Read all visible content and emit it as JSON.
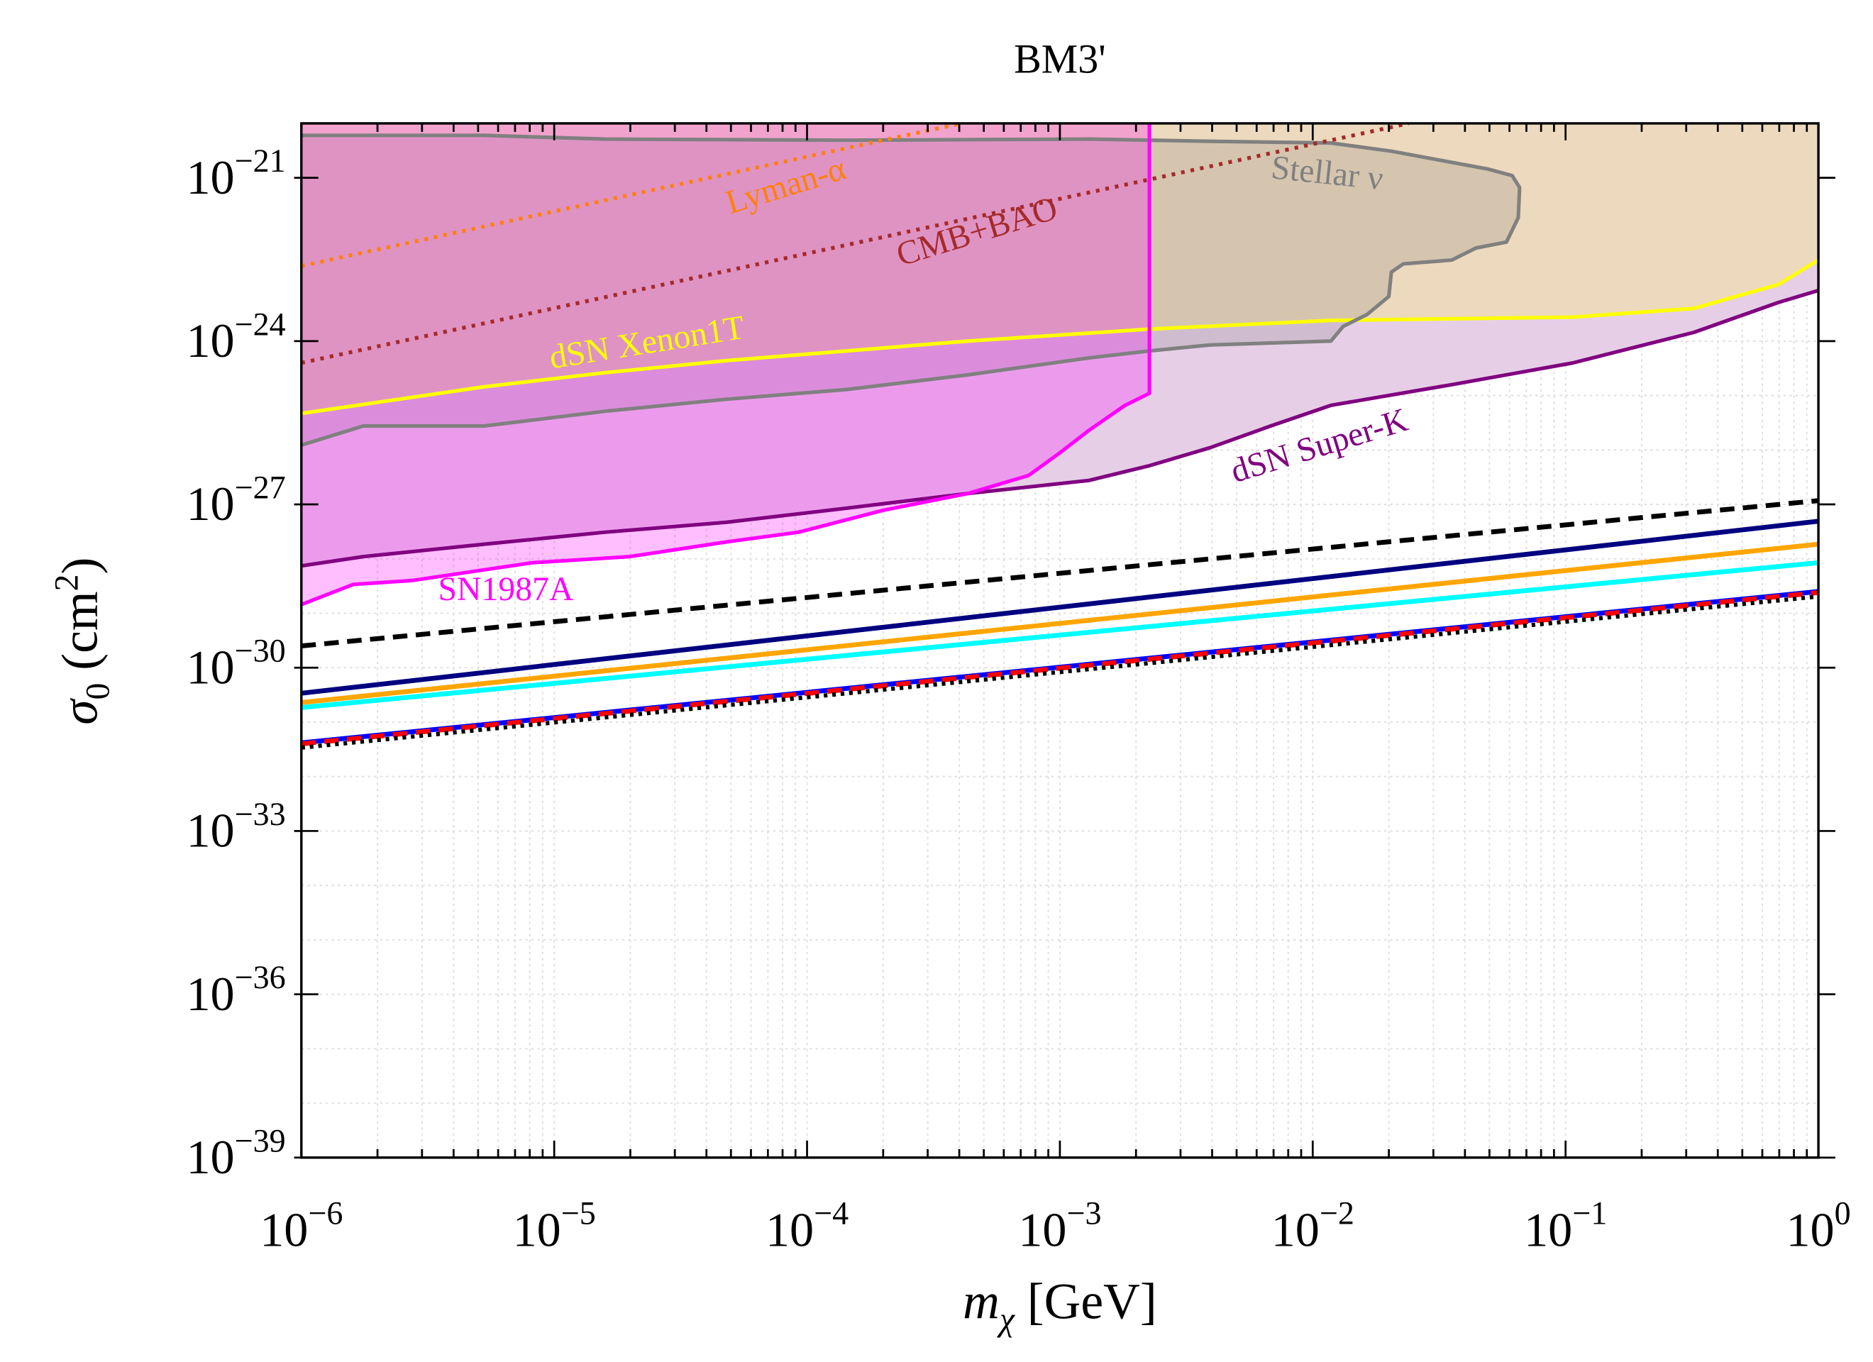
{
  "chart_data": {
    "type": "line",
    "title": "BM3'",
    "xlabel": {
      "main": "m",
      "sub": "χ",
      "rest": " [GeV]"
    },
    "ylabel": {
      "main": "σ",
      "sub": "0",
      "rest1": " (cm",
      "sup": "2",
      "rest2": ")"
    },
    "x_scale": "log",
    "y_scale": "log",
    "xlim": [
      1e-06,
      1
    ],
    "ylim": [
      1e-39,
      1e-20
    ],
    "grid": true,
    "x_ticks": [
      {
        "base": "10",
        "exp": "−6",
        "value": 1e-06
      },
      {
        "base": "10",
        "exp": "−5",
        "value": 1e-05
      },
      {
        "base": "10",
        "exp": "−4",
        "value": 0.0001
      },
      {
        "base": "10",
        "exp": "−3",
        "value": 0.001
      },
      {
        "base": "10",
        "exp": "−2",
        "value": 0.01
      },
      {
        "base": "10",
        "exp": "−1",
        "value": 0.1
      },
      {
        "base": "10",
        "exp": "0",
        "value": 1
      }
    ],
    "y_ticks": [
      {
        "base": "10",
        "exp": "−39",
        "value": 1e-39
      },
      {
        "base": "10",
        "exp": "−36",
        "value": 1e-36
      },
      {
        "base": "10",
        "exp": "−33",
        "value": 1e-33
      },
      {
        "base": "10",
        "exp": "−30",
        "value": 1e-30
      },
      {
        "base": "10",
        "exp": "−27",
        "value": 1e-27
      },
      {
        "base": "10",
        "exp": "−24",
        "value": 1e-24
      },
      {
        "base": "10",
        "exp": "−21",
        "value": 1e-21
      }
    ],
    "regions": [
      {
        "name": "dSN Super-K",
        "color": "#800080",
        "fill": "#e6cfe6",
        "boundary": "lower",
        "log10_x": [
          -6,
          -5.756,
          -5.278,
          -4.799,
          -4.321,
          -3.842,
          -3.364,
          -2.885,
          -2.646,
          -2.407,
          -2.167,
          -1.928,
          -1.45,
          -0.971,
          -0.493,
          -0.158,
          0
        ],
        "log10_y": [
          -28.13,
          -27.96,
          -27.73,
          -27.51,
          -27.33,
          -27.07,
          -26.8,
          -26.56,
          -26.29,
          -25.96,
          -25.56,
          -25.18,
          -24.8,
          -24.4,
          -23.84,
          -23.29,
          -23.07
        ]
      },
      {
        "name": "dSN Xenon1T",
        "color": "#ffff00",
        "fill": "#edd9bd",
        "boundary": "lower",
        "log10_x": [
          -6,
          -5.278,
          -4.799,
          -4.321,
          -3.842,
          -3.364,
          -2.646,
          -1.928,
          -0.971,
          -0.493,
          -0.158,
          0
        ],
        "log10_y": [
          -25.33,
          -24.84,
          -24.58,
          -24.36,
          -24.18,
          -24.0,
          -23.78,
          -23.62,
          -23.56,
          -23.4,
          -22.96,
          -22.51
        ]
      },
      {
        "name": "Stellar ν",
        "color": "#808080",
        "fill": "#808080",
        "boundary": "closed",
        "log10_x": [
          -6,
          -5.278,
          -4.799,
          -3.842,
          -2.885,
          -2.407,
          -1.928,
          -1.689,
          -1.306,
          -1.211,
          -1.182,
          -1.187,
          -1.234,
          -1.354,
          -1.45,
          -1.641,
          -1.689,
          -1.699,
          -1.785,
          -1.88,
          -1.928,
          -2.407,
          -2.646,
          -2.885,
          -3.364,
          -3.842,
          -4.321,
          -4.799,
          -5.278,
          -5.756,
          -6
        ],
        "log10_y": [
          -20.22,
          -20.22,
          -20.29,
          -20.31,
          -20.29,
          -20.33,
          -20.36,
          -20.51,
          -20.84,
          -20.96,
          -21.18,
          -21.73,
          -22.18,
          -22.29,
          -22.51,
          -22.58,
          -22.73,
          -23.18,
          -23.51,
          -23.73,
          -24.0,
          -24.07,
          -24.18,
          -24.31,
          -24.62,
          -24.89,
          -25.07,
          -25.29,
          -25.56,
          -25.56,
          -25.91
        ]
      },
      {
        "name": "SN1987A",
        "color": "#ff00ff",
        "fill": "#ff00ff",
        "boundary": "lower",
        "log10_x": [
          -6,
          -5.794,
          -5.565,
          -5.086,
          -4.703,
          -4.321,
          -4.034,
          -3.699,
          -3.364,
          -3.124,
          -3.005,
          -2.885,
          -2.742,
          -2.646
        ],
        "log10_y": [
          -28.84,
          -28.47,
          -28.4,
          -28.07,
          -27.96,
          -27.69,
          -27.51,
          -27.11,
          -26.8,
          -26.47,
          -26.07,
          -25.64,
          -25.18,
          -24.96
        ]
      }
    ],
    "dotted_lines": [
      {
        "name": "Lyman-α",
        "color": "#ff7f0e",
        "log10_x": [
          -6,
          -3.39
        ],
        "log10_y": [
          -22.62,
          -20.0
        ]
      },
      {
        "name": "CMB+BAO",
        "color": "#a52a2a",
        "log10_x": [
          -6,
          -1.62
        ],
        "log10_y": [
          -24.4,
          -20.0
        ]
      }
    ],
    "series": [
      {
        "color": "#000000",
        "style": "dashed",
        "log10_x": [
          -6,
          0
        ],
        "log10_y": [
          -29.6,
          -26.93
        ]
      },
      {
        "color": "#000080",
        "style": "solid",
        "log10_x": [
          -6,
          0
        ],
        "log10_y": [
          -30.47,
          -27.31
        ]
      },
      {
        "color": "#00ffff",
        "style": "solid",
        "log10_x": [
          -6,
          0
        ],
        "log10_y": [
          -30.73,
          -28.07
        ]
      },
      {
        "color": "#ffa500",
        "style": "solid",
        "log10_x": [
          -6,
          0
        ],
        "log10_y": [
          -30.64,
          -27.73
        ]
      },
      {
        "color": "#0000ff",
        "style": "solid",
        "log10_x": [
          -6,
          0
        ],
        "log10_y": [
          -31.38,
          -28.6
        ]
      },
      {
        "color": "#ff0000",
        "style": "dashed",
        "log10_x": [
          -6,
          0
        ],
        "log10_y": [
          -31.4,
          -28.62
        ]
      },
      {
        "color": "#000000",
        "style": "dotted",
        "log10_x": [
          -6,
          0
        ],
        "log10_y": [
          -31.47,
          -28.69
        ]
      }
    ],
    "annotations": [
      {
        "text": "Lyman-α",
        "color": "#ff7f0e"
      },
      {
        "text": "CMB+BAO",
        "color": "#a52a2a"
      },
      {
        "text": "Stellar ν",
        "color": "#808080"
      },
      {
        "text": "dSN Xenon1T",
        "color": "#ffff00"
      },
      {
        "text": "dSN Super-K",
        "color": "#800080"
      },
      {
        "text": "SN1987A",
        "color": "#ff00ff"
      }
    ]
  }
}
